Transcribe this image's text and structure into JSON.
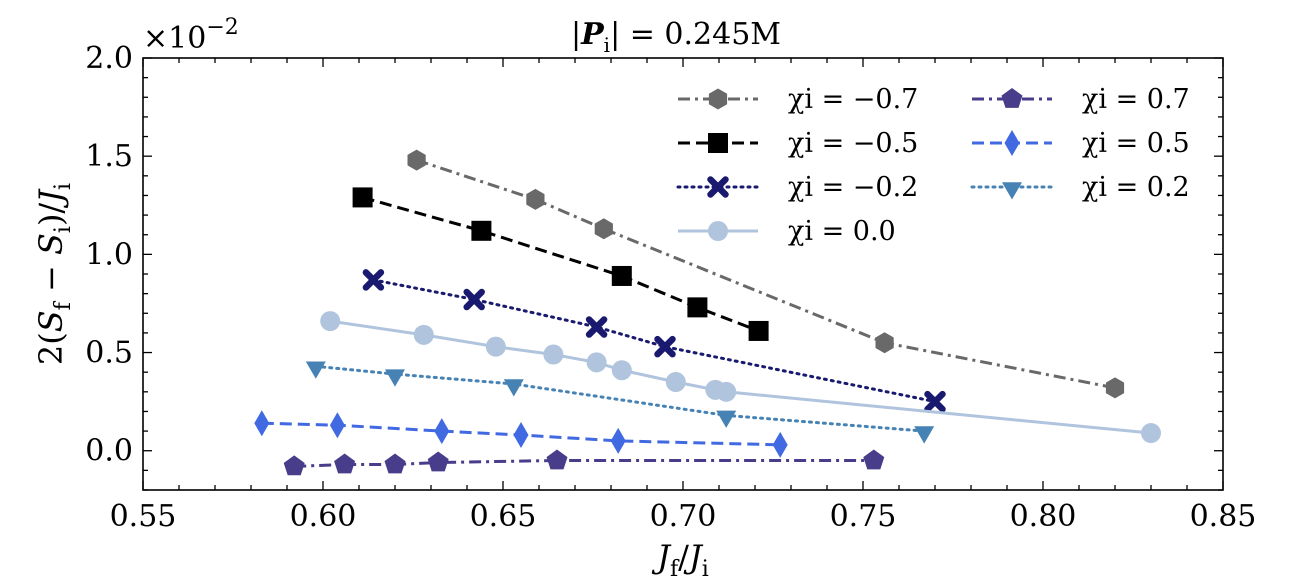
{
  "chart_data": {
    "type": "line",
    "title": "|P_i| = 0.245M",
    "xlabel": "J_f / J_i",
    "ylabel": "2(S_f − S_i) / J_i",
    "y_multiplier": "×10⁻²",
    "xlim": [
      0.55,
      0.85
    ],
    "ylim": [
      -0.2,
      2.0
    ],
    "xticks": [
      "0.55",
      "0.60",
      "0.65",
      "0.70",
      "0.75",
      "0.80",
      "0.85"
    ],
    "yticks": [
      "0.0",
      "0.5",
      "1.0",
      "1.5",
      "2.0"
    ],
    "series": [
      {
        "name": "χi = −0.7",
        "color": "#696969",
        "marker": "hexagon",
        "dash": "dashdot",
        "x": [
          0.626,
          0.659,
          0.678,
          0.756,
          0.82
        ],
        "y": [
          1.48,
          1.28,
          1.13,
          0.55,
          0.32
        ]
      },
      {
        "name": "χi = −0.5",
        "color": "#000000",
        "marker": "square",
        "dash": "dashed",
        "x": [
          0.611,
          0.644,
          0.683,
          0.704,
          0.721
        ],
        "y": [
          1.29,
          1.12,
          0.89,
          0.73,
          0.61
        ]
      },
      {
        "name": "χi = −0.2",
        "color": "#191970",
        "marker": "x",
        "dash": "dotted",
        "x": [
          0.614,
          0.642,
          0.676,
          0.695,
          0.77
        ],
        "y": [
          0.87,
          0.77,
          0.63,
          0.53,
          0.25
        ]
      },
      {
        "name": "χi = 0.0",
        "color": "#b0c4de",
        "marker": "circle",
        "dash": "solid",
        "x": [
          0.602,
          0.628,
          0.648,
          0.664,
          0.676,
          0.683,
          0.698,
          0.709,
          0.712,
          0.83
        ],
        "y": [
          0.66,
          0.59,
          0.53,
          0.49,
          0.45,
          0.41,
          0.35,
          0.31,
          0.3,
          0.09
        ]
      },
      {
        "name": "χi = 0.7",
        "color": "#483d8b",
        "marker": "pentagon",
        "dash": "dashdot",
        "x": [
          0.592,
          0.606,
          0.62,
          0.632,
          0.665,
          0.753
        ],
        "y": [
          -0.08,
          -0.07,
          -0.07,
          -0.06,
          -0.05,
          -0.05
        ]
      },
      {
        "name": "χi = 0.5",
        "color": "#4169e1",
        "marker": "diamond",
        "dash": "dashed",
        "x": [
          0.583,
          0.604,
          0.633,
          0.655,
          0.682,
          0.727
        ],
        "y": [
          0.14,
          0.13,
          0.1,
          0.08,
          0.05,
          0.03
        ]
      },
      {
        "name": "χi = 0.2",
        "color": "#4682b4",
        "marker": "triangle-down",
        "dash": "dotted",
        "x": [
          0.598,
          0.62,
          0.653,
          0.712,
          0.767
        ],
        "y": [
          0.43,
          0.39,
          0.34,
          0.18,
          0.1
        ]
      }
    ]
  }
}
